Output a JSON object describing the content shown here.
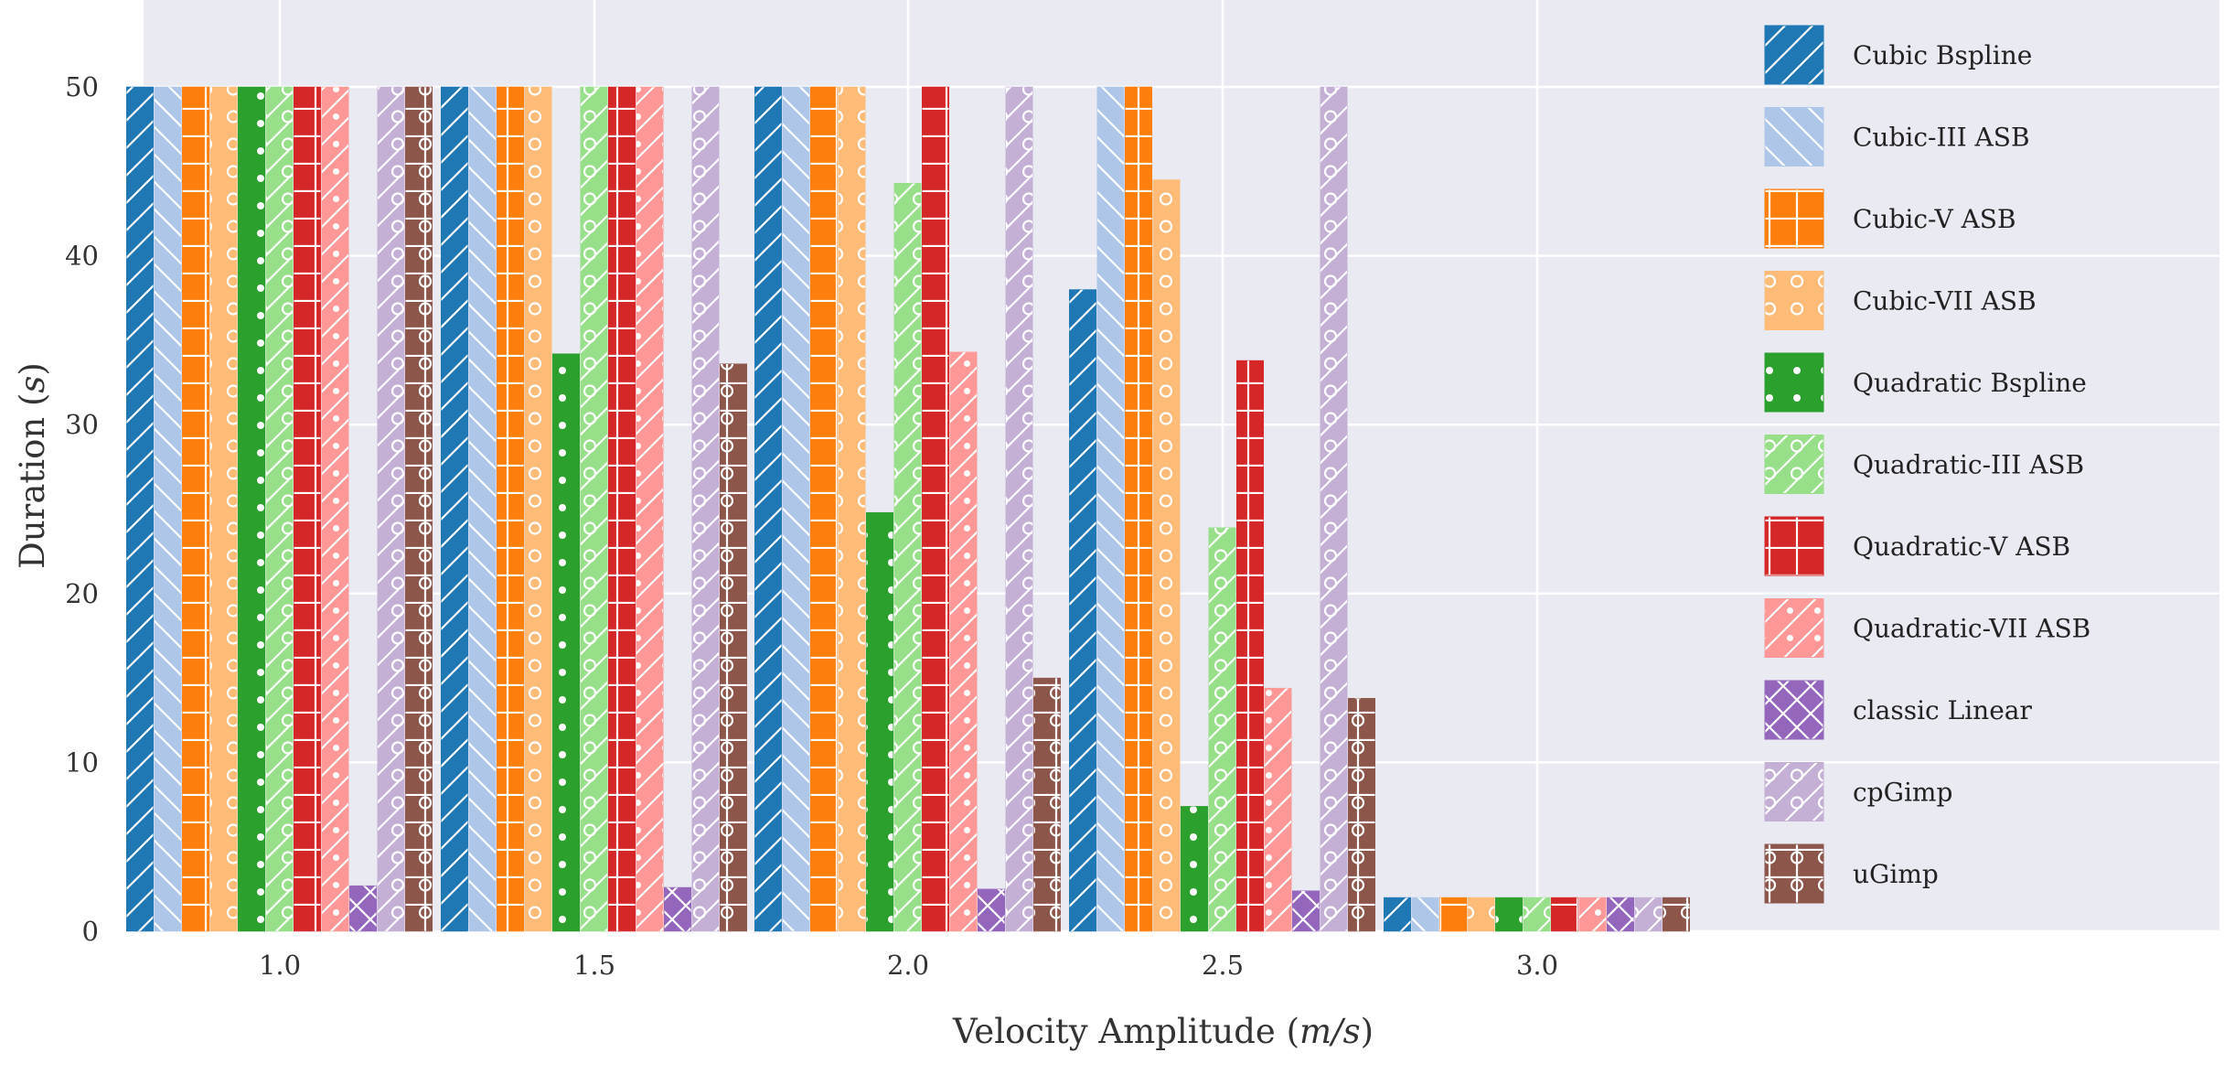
{
  "chart_data": {
    "type": "bar",
    "title": "",
    "xlabel": "Velocity Amplitude (m/s)",
    "xlabel_prefix": "Velocity Amplitude (",
    "xlabel_unit": "m/s",
    "xlabel_suffix": ")",
    "ylabel": "Duration (s)",
    "ylabel_prefix": "Duration (",
    "ylabel_unit": "s",
    "ylabel_suffix": ")",
    "ylim": [
      0,
      55
    ],
    "yticks": [
      0,
      10,
      20,
      30,
      40,
      50
    ],
    "grid": true,
    "legend_position": "right",
    "categories": [
      "1.0",
      "1.5",
      "2.0",
      "2.5",
      "3.0"
    ],
    "series": [
      {
        "name": "Cubic Bspline",
        "color": "#1f77b4",
        "hatch": "slash",
        "values": [
          50,
          50,
          50,
          38,
          2
        ]
      },
      {
        "name": "Cubic-III ASB",
        "color": "#aec7e8",
        "hatch": "backslash",
        "values": [
          50,
          50,
          50,
          50,
          2
        ]
      },
      {
        "name": "Cubic-V ASB",
        "color": "#ff7f0e",
        "hatch": "grid",
        "values": [
          50,
          50,
          50,
          50,
          2
        ]
      },
      {
        "name": "Cubic-VII ASB",
        "color": "#ffbb78",
        "hatch": "circles",
        "values": [
          50,
          50,
          50,
          44.5,
          2
        ]
      },
      {
        "name": "Quadratic Bspline",
        "color": "#2ca02c",
        "hatch": "dots",
        "values": [
          50,
          34.2,
          24.8,
          7.4,
          2
        ]
      },
      {
        "name": "Quadratic-III ASB",
        "color": "#98df8a",
        "hatch": "slash-circles",
        "values": [
          50,
          50,
          44.3,
          23.9,
          2
        ]
      },
      {
        "name": "Quadratic-V ASB",
        "color": "#d62728",
        "hatch": "grid",
        "values": [
          50,
          50,
          50,
          33.8,
          2
        ]
      },
      {
        "name": "Quadratic-VII ASB",
        "color": "#ff9896",
        "hatch": "slash-dots",
        "values": [
          50,
          50,
          34.3,
          14.4,
          2
        ]
      },
      {
        "name": "classic Linear",
        "color": "#9467bd",
        "hatch": "cross",
        "values": [
          2.7,
          2.6,
          2.5,
          2.4,
          2
        ]
      },
      {
        "name": "cpGimp",
        "color": "#c5b0d5",
        "hatch": "slash-circles",
        "values": [
          50,
          50,
          50,
          50,
          2
        ]
      },
      {
        "name": "uGimp",
        "color": "#8c564b",
        "hatch": "grid-circles",
        "values": [
          50,
          33.6,
          15.0,
          13.8,
          2
        ]
      }
    ]
  }
}
